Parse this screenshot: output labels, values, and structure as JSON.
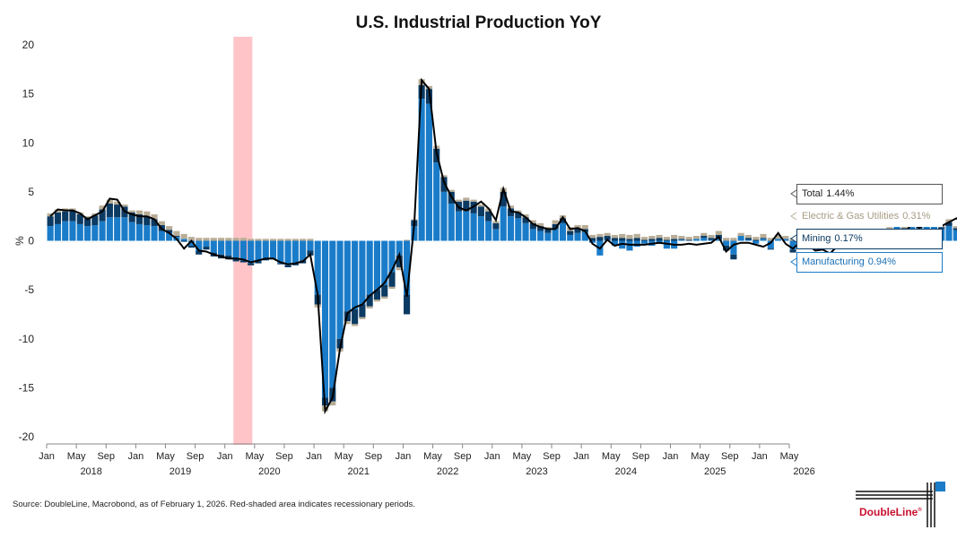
{
  "colors": {
    "manufacturing": "#1a7cc9",
    "mining": "#0b3a63",
    "utilities": "#b8ad97",
    "total_line": "#000000",
    "recession": "#ffc4c8"
  },
  "chart_data": {
    "type": "bar",
    "stacked": true,
    "title": "U.S. Industrial Production YoY",
    "ylabel": "%",
    "ylim": [
      -20,
      20
    ],
    "yticks": [
      20,
      15,
      10,
      5,
      0,
      -5,
      -10,
      -15,
      -20
    ],
    "x_month_ticks": [
      "Jan",
      "May",
      "Sep",
      "Jan",
      "May",
      "Sep",
      "Jan",
      "May",
      "Sep",
      "Jan",
      "May",
      "Sep",
      "Jan",
      "May",
      "Sep",
      "Jan",
      "May",
      "Sep",
      "Jan",
      "May",
      "Sep",
      "Jan",
      "May",
      "Sep",
      "Jan",
      "May"
    ],
    "x_year_labels": [
      "2018",
      "2019",
      "2020",
      "2021",
      "2022",
      "2023",
      "2024",
      "2025",
      "2026"
    ],
    "start": "2018-01",
    "recession": {
      "start": "2020-02",
      "end": "2020-04"
    },
    "series": [
      {
        "name": "Manufacturing",
        "values": [
          1.5,
          1.7,
          2.0,
          2.0,
          1.7,
          1.5,
          1.6,
          2.0,
          2.4,
          2.4,
          2.4,
          1.9,
          1.7,
          1.6,
          1.5,
          1.0,
          0.8,
          0.4,
          0.2,
          -0.5,
          -1.0,
          -0.6,
          -1.2,
          -1.4,
          -1.5,
          -1.8,
          -2.0,
          -2.3,
          -2.1,
          -1.8,
          -1.8,
          -2.3,
          -2.5,
          -2.3,
          -2.0,
          -1.0,
          -5.5,
          -16.0,
          -15.0,
          -10.0,
          -7.2,
          -7.0,
          -6.5,
          -5.5,
          -5.0,
          -4.5,
          -3.2,
          -1.5,
          -5.5,
          1.5,
          14.5,
          14.0,
          8.0,
          5.0,
          3.8,
          3.0,
          3.0,
          2.8,
          2.5,
          2.0,
          1.2,
          3.5,
          2.5,
          2.3,
          1.8,
          1.2,
          1.0,
          0.8,
          1.2,
          1.8,
          0.6,
          0.8,
          0.9,
          -0.2,
          -1.5,
          0.1,
          -0.5,
          -0.8,
          -1.0,
          -0.6,
          -0.3,
          -0.5,
          -0.2,
          -0.8,
          -0.8,
          0.1,
          0.0,
          0.2,
          0.3,
          0.1,
          0.2,
          -0.5,
          -1.4,
          0.5,
          0.1,
          -0.3,
          0.2,
          -0.8,
          0.2,
          0.2,
          -0.9,
          -0.4,
          -0.5,
          -0.2,
          -0.4,
          0.2,
          0.1,
          0.6,
          0.3,
          0.4,
          0.5,
          0.6,
          0.3,
          0.8,
          1.5,
          1.2,
          1.4,
          1.3,
          1.5,
          1.6,
          1.2,
          1.5,
          1.1,
          0.94
        ]
      },
      {
        "name": "Mining",
        "values": [
          1.0,
          1.2,
          1.0,
          1.1,
          1.0,
          0.9,
          1.0,
          1.2,
          1.4,
          1.3,
          1.1,
          1.0,
          1.0,
          0.9,
          0.7,
          0.6,
          0.3,
          0.1,
          -0.1,
          -0.2,
          -0.4,
          -0.3,
          -0.4,
          -0.4,
          -0.4,
          -0.3,
          -0.2,
          -0.2,
          -0.2,
          -0.2,
          -0.1,
          -0.1,
          -0.2,
          -0.2,
          -0.3,
          -0.5,
          -1.0,
          -0.8,
          -1.4,
          -1.0,
          -1.0,
          -1.5,
          -1.3,
          -1.2,
          -1.0,
          -1.2,
          -1.5,
          -1.2,
          -2.0,
          0.6,
          1.4,
          1.5,
          1.4,
          1.5,
          1.2,
          1.0,
          1.1,
          1.2,
          1.0,
          1.0,
          0.6,
          1.5,
          0.8,
          0.6,
          0.6,
          0.6,
          0.5,
          0.4,
          0.5,
          0.5,
          0.4,
          0.4,
          0.3,
          0.3,
          0.4,
          0.4,
          0.3,
          0.3,
          0.2,
          0.3,
          0.1,
          0.2,
          0.3,
          0.1,
          0.2,
          0.1,
          0.1,
          0.0,
          0.2,
          0.2,
          0.4,
          -0.5,
          -0.5,
          0.0,
          0.2,
          0.1,
          0.1,
          -0.1,
          0.0,
          0.0,
          -0.3,
          -0.3,
          -0.2,
          -0.1,
          -0.2,
          0.1,
          0.1,
          0.1,
          0.1,
          0.0,
          0.1,
          0.1,
          0.0,
          0.2,
          0.4,
          0.1,
          0.2,
          0.2,
          0.3,
          0.2,
          0.2,
          0.4,
          0.2,
          0.17
        ]
      },
      {
        "name": "Electric & Gas Utilities",
        "values": [
          0.3,
          0.3,
          0.3,
          0.2,
          0.2,
          0.1,
          0.2,
          0.4,
          0.4,
          0.3,
          0.2,
          0.2,
          0.4,
          0.5,
          0.5,
          0.4,
          0.4,
          0.5,
          0.5,
          0.4,
          0.3,
          0.3,
          0.3,
          0.3,
          0.3,
          0.3,
          0.3,
          0.2,
          0.2,
          0.2,
          0.2,
          0.2,
          0.2,
          0.2,
          0.2,
          0.2,
          -0.3,
          -0.6,
          -0.4,
          -0.3,
          -0.3,
          -0.2,
          -0.2,
          -0.2,
          -0.2,
          -0.2,
          -0.2,
          -0.3,
          0.1,
          0.1,
          0.6,
          0.3,
          0.3,
          0.2,
          0.2,
          0.2,
          0.3,
          0.2,
          0.2,
          0.3,
          0.2,
          0.4,
          0.3,
          0.2,
          0.3,
          0.3,
          0.3,
          0.2,
          0.4,
          0.3,
          0.4,
          0.4,
          0.4,
          0.3,
          0.3,
          0.3,
          0.3,
          0.4,
          0.4,
          0.4,
          0.3,
          0.3,
          0.3,
          0.3,
          0.4,
          0.3,
          0.3,
          0.3,
          0.3,
          0.3,
          0.4,
          0.3,
          0.3,
          0.3,
          0.3,
          0.3,
          0.4,
          0.3,
          0.4,
          0.3,
          0.3,
          0.3,
          0.3,
          0.3,
          0.4,
          0.4,
          0.5,
          0.4,
          0.4,
          0.3,
          0.4,
          0.4,
          0.3,
          0.4,
          0.3,
          0.3,
          0.2,
          0.3,
          0.3,
          0.3,
          0.2,
          0.3,
          0.2,
          0.31
        ]
      },
      {
        "name": "Total",
        "type": "line",
        "values": [
          2.5,
          3.2,
          3.1,
          3.1,
          2.8,
          2.2,
          2.6,
          3.0,
          4.3,
          4.2,
          3.0,
          2.7,
          2.5,
          2.5,
          2.2,
          1.2,
          0.8,
          0.2,
          -0.8,
          0.0,
          -1.0,
          -1.1,
          -1.4,
          -1.6,
          -1.8,
          -1.8,
          -1.9,
          -2.2,
          -2.0,
          -1.8,
          -1.8,
          -2.2,
          -2.4,
          -2.3,
          -2.1,
          -1.4,
          -5.5,
          -17.4,
          -16.0,
          -11.0,
          -7.4,
          -6.8,
          -6.5,
          -5.6,
          -5.0,
          -4.3,
          -3.0,
          -1.4,
          -5.7,
          1.7,
          16.4,
          15.5,
          9.0,
          6.0,
          4.5,
          3.4,
          3.1,
          3.5,
          4.0,
          3.3,
          2.1,
          5.3,
          3.0,
          2.9,
          2.4,
          1.7,
          1.4,
          1.2,
          1.2,
          2.4,
          1.2,
          1.3,
          1.0,
          -0.3,
          -0.8,
          0.1,
          -0.5,
          -0.3,
          -0.4,
          -0.4,
          -0.4,
          -0.3,
          -0.2,
          -0.3,
          -0.4,
          -0.4,
          -0.3,
          -0.4,
          -0.3,
          -0.2,
          0.4,
          -1.1,
          -0.4,
          -0.2,
          -0.2,
          -0.4,
          -0.6,
          -0.2,
          0.8,
          -0.3,
          -0.8,
          -0.1,
          -0.4,
          -1.0,
          -0.9,
          -1.3,
          -0.5,
          0.2,
          0.8,
          0.7,
          0.6,
          0.8,
          0.4,
          0.9,
          0.2,
          0.5,
          1.9,
          1.3,
          1.8,
          1.6,
          1.5,
          1.9,
          2.3,
          1.8,
          1.44
        ]
      }
    ]
  },
  "legend_labels": [
    {
      "name": "Total",
      "value": "1.44%"
    },
    {
      "name": "Electric & Gas Utilities",
      "value": "0.31%"
    },
    {
      "name": "Mining",
      "value": "0.17%"
    },
    {
      "name": "Manufacturing",
      "value": "0.94%"
    }
  ],
  "source_note": "Source: DoubleLine, Macrobond, as of February 1, 2026. Red-shaded area indicates recessionary periods.",
  "logo": {
    "text": "DoubleLine",
    "mark": "®"
  }
}
